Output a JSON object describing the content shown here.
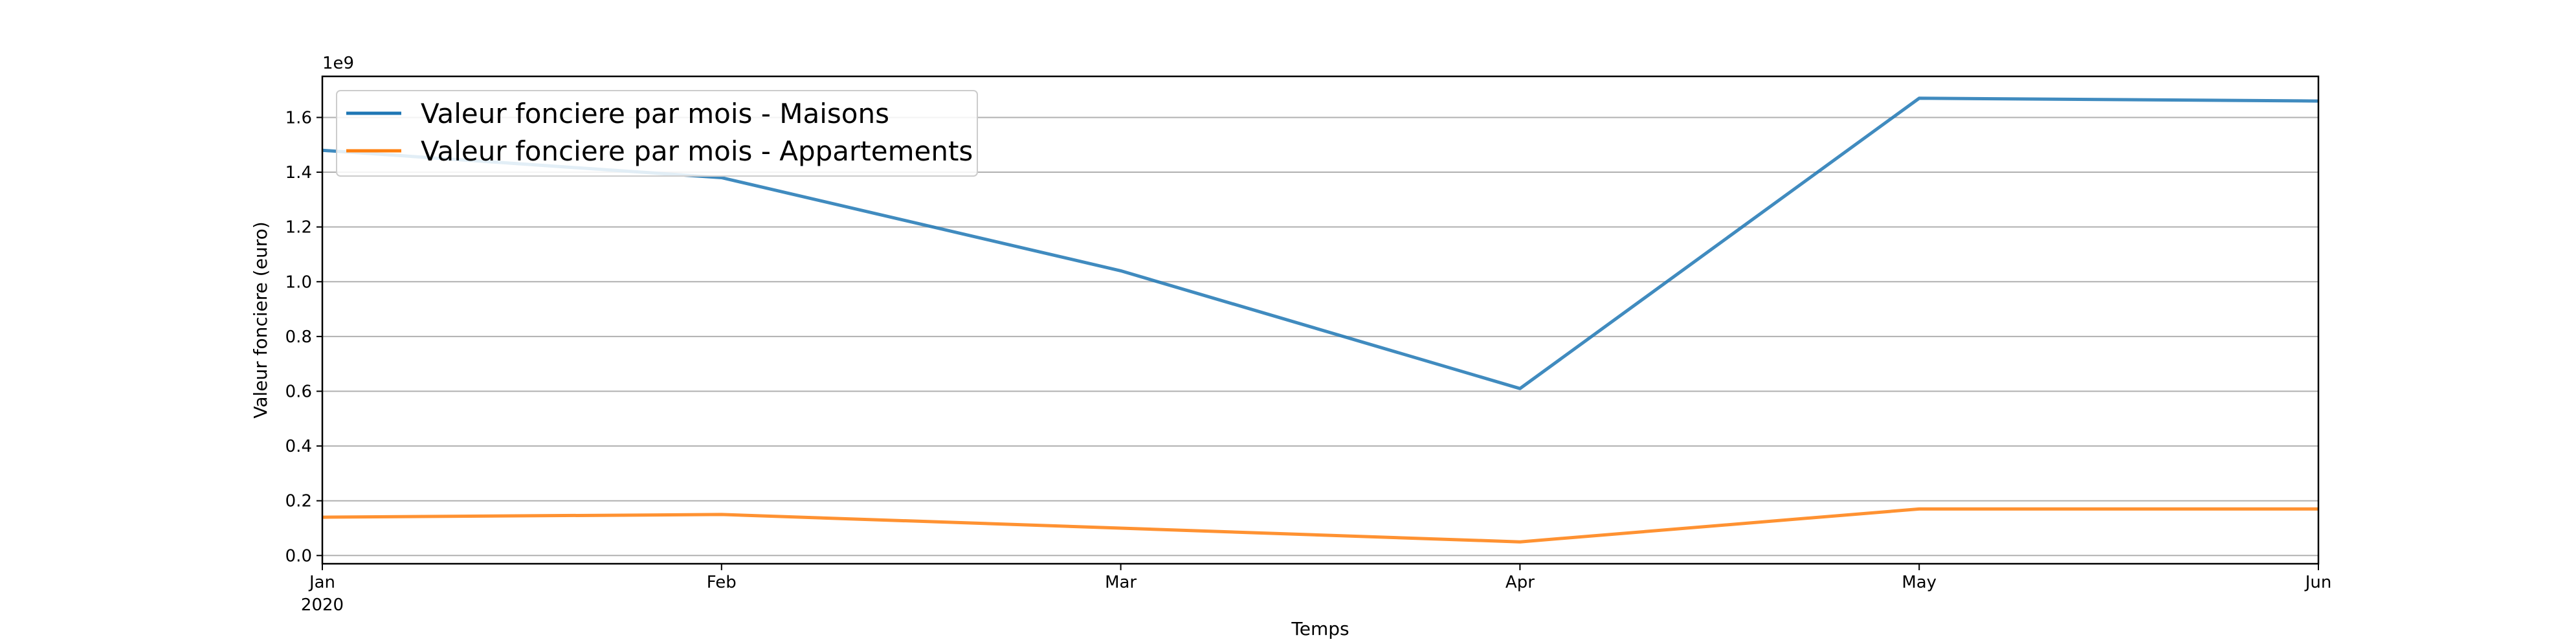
{
  "chart_data": {
    "type": "line",
    "x": [
      "Jan",
      "Feb",
      "Mar",
      "Apr",
      "May",
      "Jun"
    ],
    "x_tick_labels": [
      "Jan",
      "Feb",
      "Mar",
      "Apr",
      "May",
      "Jun"
    ],
    "x_year_label": "2020",
    "xlabel": "Temps",
    "ylabel": "Valeur fonciere (euro)",
    "y_offset_label": "1e9",
    "ylim": [
      -0.03,
      1.75
    ],
    "y_ticks": [
      0.0,
      0.2,
      0.4,
      0.6,
      0.8,
      1.0,
      1.2,
      1.4,
      1.6
    ],
    "y_tick_labels": [
      "0.0",
      "0.2",
      "0.4",
      "0.6",
      "0.8",
      "1.0",
      "1.2",
      "1.4",
      "1.6"
    ],
    "grid": "horizontal",
    "legend_position": "top-left",
    "series": [
      {
        "name": "Valeur fonciere par mois - Maisons",
        "color": "#1f77b4",
        "values": [
          1.48,
          1.38,
          1.04,
          0.61,
          1.67,
          1.66
        ]
      },
      {
        "name": "Valeur fonciere par mois - Appartements",
        "color": "#ff7f0e",
        "values": [
          0.14,
          0.15,
          0.1,
          0.05,
          0.17,
          0.17
        ]
      }
    ]
  }
}
